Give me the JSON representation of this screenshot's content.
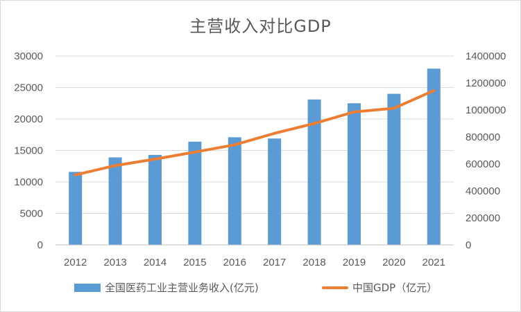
{
  "chart_data": {
    "type": "bar",
    "title": "主营收入对比GDP",
    "categories": [
      "2012",
      "2013",
      "2014",
      "2015",
      "2016",
      "2017",
      "2018",
      "2019",
      "2020",
      "2021"
    ],
    "series": [
      {
        "name": "全国医药工业主营业务收入(亿元)",
        "type": "bar",
        "axis": "left",
        "color": "#5b9bd5",
        "values": [
          11600,
          13900,
          14300,
          16400,
          17100,
          16900,
          23100,
          22500,
          24000,
          28000
        ]
      },
      {
        "name": "中国GDP（亿元）",
        "type": "line",
        "axis": "right",
        "color": "#ed7d31",
        "values": [
          519000,
          588000,
          636000,
          688000,
          742000,
          827000,
          900000,
          986000,
          1013000,
          1144000
        ]
      }
    ],
    "y_left": {
      "ylim": [
        0,
        30000
      ],
      "ticks": [
        "0",
        "5000",
        "10000",
        "15000",
        "20000",
        "25000",
        "30000"
      ]
    },
    "y_right": {
      "ylim": [
        0,
        1400000
      ],
      "ticks": [
        "0",
        "200000",
        "400000",
        "600000",
        "800000",
        "1000000",
        "1200000",
        "1400000"
      ]
    },
    "grid": true,
    "legend": "bottom"
  }
}
